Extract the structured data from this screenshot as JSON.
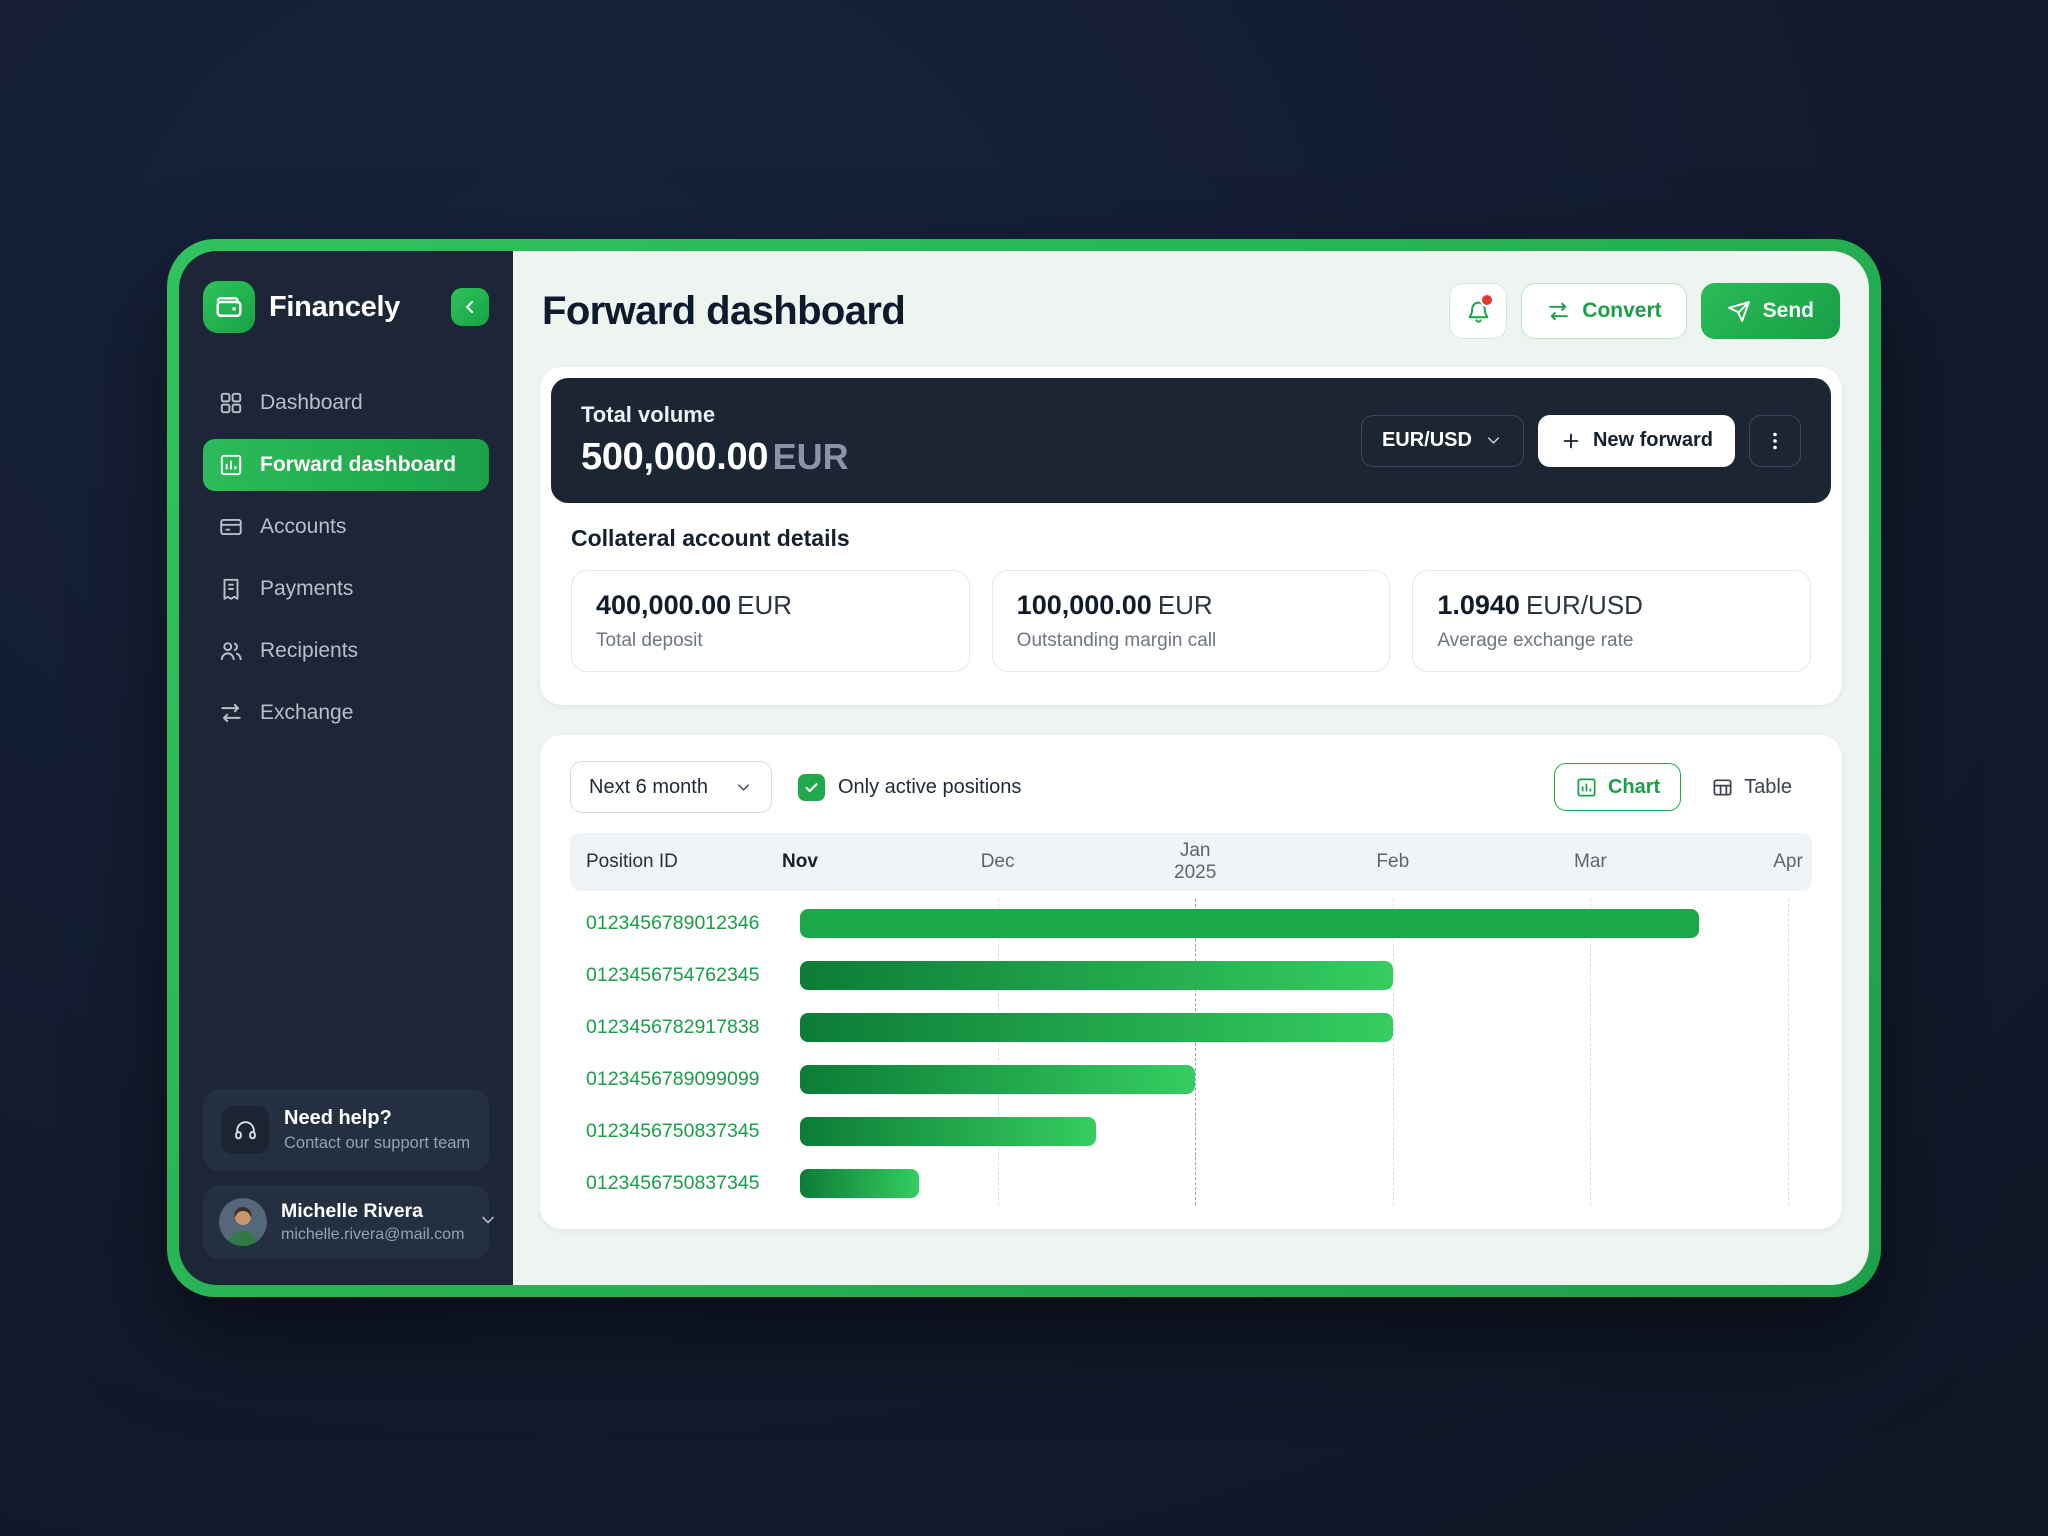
{
  "colors": {
    "accent": "#1fae4e",
    "frame_green": "#27b351",
    "sidebar_bg": "#1c2636",
    "page_bg": "#121a2c",
    "main_bg": "#eef4ef",
    "hero_bg": "#1b2534",
    "bar_solid": "#1aa84b",
    "bar_gradient_start": "#0c7c36",
    "bar_gradient_end": "#36cd60",
    "position_id_green": "#1b9c49",
    "notification_dot": "#e5372c"
  },
  "sidebar": {
    "brand": "Financely",
    "items": [
      {
        "label": "Dashboard",
        "icon": "grid-icon",
        "active": false
      },
      {
        "label": "Forward dashboard",
        "icon": "bar-chart-icon",
        "active": true
      },
      {
        "label": "Accounts",
        "icon": "wallet-card-icon",
        "active": false
      },
      {
        "label": "Payments",
        "icon": "receipt-icon",
        "active": false
      },
      {
        "label": "Recipients",
        "icon": "people-icon",
        "active": false
      },
      {
        "label": "Exchange",
        "icon": "swap-arrows-icon",
        "active": false
      }
    ],
    "help": {
      "title": "Need help?",
      "subtitle": "Contact our support team",
      "icon": "headset-icon"
    },
    "user": {
      "name": "Michelle Rivera",
      "email": "michelle.rivera@mail.com"
    }
  },
  "header": {
    "title": "Forward dashboard",
    "convert_label": "Convert",
    "send_label": "Send",
    "notification_icon": "bell-icon",
    "has_notification_dot": true
  },
  "hero": {
    "label": "Total volume",
    "amount": "500,000.00",
    "currency": "EUR",
    "pair_selector": "EUR/USD",
    "new_forward_label": "New forward"
  },
  "collateral": {
    "title": "Collateral account details",
    "stats": [
      {
        "value": "400,000.00",
        "unit": "EUR",
        "caption": "Total deposit"
      },
      {
        "value": "100,000.00",
        "unit": "EUR",
        "caption": "Outstanding margin call"
      },
      {
        "value": "1.0940",
        "unit": "EUR/USD",
        "caption": "Average exchange rate"
      }
    ]
  },
  "positions": {
    "range_selector": "Next 6 month",
    "filter_label": "Only active positions",
    "filter_checked": true,
    "view_toggle": {
      "chart": "Chart",
      "table": "Table",
      "active": "Chart"
    },
    "table_header": "Position ID",
    "months": [
      {
        "label": "Nov",
        "sub": "",
        "current": true
      },
      {
        "label": "Dec",
        "sub": "",
        "current": false
      },
      {
        "label": "Jan",
        "sub": "2025",
        "current": false
      },
      {
        "label": "Feb",
        "sub": "",
        "current": false
      },
      {
        "label": "Mar",
        "sub": "",
        "current": false
      },
      {
        "label": "Apr",
        "sub": "",
        "current": false
      }
    ]
  },
  "chart_data": {
    "type": "bar",
    "orientation": "horizontal-gantt",
    "x_ticks": [
      "Nov",
      "Dec",
      "Jan 2025",
      "Feb",
      "Mar",
      "Apr"
    ],
    "x_axis_unit": "months from Nov 2024",
    "x_range_months": 5,
    "grid": "dashed-vertical",
    "rows": [
      {
        "position_id": "0123456789012346",
        "start_month": 0,
        "end_month": 4.55,
        "style": "solid"
      },
      {
        "position_id": "0123456754762345",
        "start_month": 0,
        "end_month": 3.0,
        "style": "gradient"
      },
      {
        "position_id": "0123456782917838",
        "start_month": 0,
        "end_month": 3.0,
        "style": "gradient"
      },
      {
        "position_id": "0123456789099099",
        "start_month": 0,
        "end_month": 2.0,
        "style": "gradient"
      },
      {
        "position_id": "0123456750837345",
        "start_month": 0,
        "end_month": 1.5,
        "style": "gradient"
      },
      {
        "position_id": "0123456750837345",
        "start_month": 0,
        "end_month": 0.6,
        "style": "gradient"
      }
    ]
  }
}
